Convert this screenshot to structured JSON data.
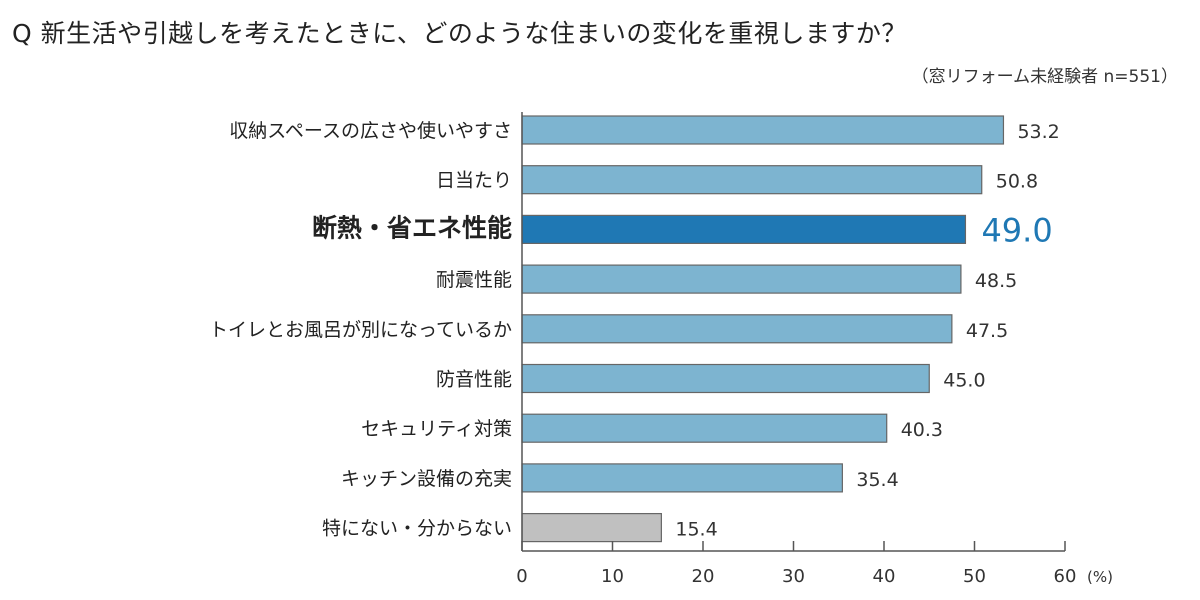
{
  "chart_data": {
    "type": "bar",
    "orientation": "horizontal",
    "title": "Q 新生活や引越しを考えたときに、どのような住まいの変化を重視しますか？",
    "subtitle": "（窓リフォーム未経験者 n=551）",
    "categories": [
      "収納スペースの広さや使いやすさ",
      "日当たり",
      "断熱・省エネ性能",
      "耐震性能",
      "トイレとお風呂が別になっているか",
      "防音性能",
      "セキュリティ対策",
      "キッチン設備の充実",
      "特にない・分からない"
    ],
    "values": [
      53.2,
      50.8,
      49.0,
      48.5,
      47.5,
      45.0,
      40.3,
      35.4,
      15.4
    ],
    "value_labels": [
      "53.2",
      "50.8",
      "49.0",
      "48.5",
      "47.5",
      "45.0",
      "40.3",
      "35.4",
      "15.4"
    ],
    "highlight_index": 2,
    "xlim": [
      0,
      60
    ],
    "xticks": [
      "0",
      "10",
      "20",
      "30",
      "40",
      "50",
      "60"
    ],
    "xunit": "(%)",
    "grid": false,
    "colors": {
      "default": "#7db4d0",
      "highlight": "#1f78b4",
      "other": "#c0c0c0",
      "highlight_text": "#1f78b4"
    }
  }
}
